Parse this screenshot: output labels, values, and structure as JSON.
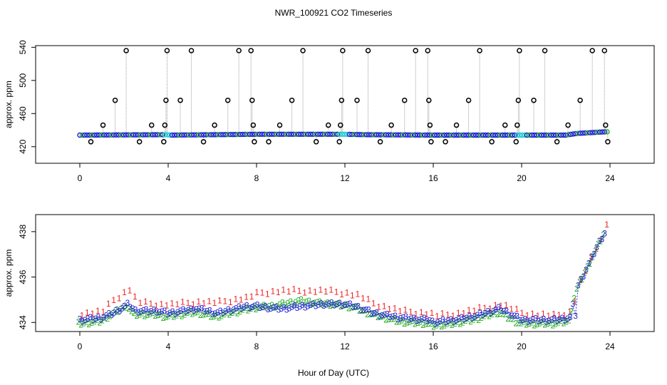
{
  "page_title": "NWR_100921  CO2 Timeseries",
  "x_axis_label": "Hour of Day (UTC)",
  "colors": {
    "frame": "#000000",
    "connector": "#9e9e9e",
    "outlier": "#000000",
    "series_blue": "#1f1fd6",
    "series_green": "#22aa22",
    "series_red": "#ee2222",
    "series_cyan": "#22cccc",
    "series_orange": "#ff9900"
  },
  "chart_data": [
    {
      "type": "scatter",
      "title": "NWR_100921  CO2 Timeseries",
      "xlabel": "",
      "ylabel": "approx. ppm",
      "xlim": [
        -2,
        26
      ],
      "ylim": [
        400,
        542
      ],
      "xticks": [
        0,
        4,
        8,
        12,
        16,
        20,
        24
      ],
      "yticks": [
        420,
        460,
        500,
        540
      ],
      "grid": false,
      "baseline": [
        [
          0,
          434
        ],
        [
          3.9,
          434.5
        ],
        [
          4.1,
          434
        ],
        [
          8,
          435
        ],
        [
          10,
          435
        ],
        [
          12,
          435
        ],
        [
          13,
          434.5
        ],
        [
          16,
          434
        ],
        [
          20,
          434
        ],
        [
          22,
          434
        ],
        [
          22.5,
          436
        ],
        [
          23.8,
          438
        ]
      ],
      "outliers": [
        [
          0.5,
          426
        ],
        [
          1.05,
          446
        ],
        [
          1.6,
          476
        ],
        [
          2.1,
          536
        ],
        [
          2.7,
          426
        ],
        [
          3.25,
          446
        ],
        [
          3.8,
          426
        ],
        [
          3.85,
          446
        ],
        [
          3.9,
          476
        ],
        [
          3.95,
          536
        ],
        [
          4.55,
          476
        ],
        [
          5.05,
          536
        ],
        [
          5.6,
          426
        ],
        [
          6.1,
          446
        ],
        [
          6.7,
          476
        ],
        [
          7.2,
          536
        ],
        [
          7.75,
          536
        ],
        [
          7.8,
          476
        ],
        [
          7.85,
          446
        ],
        [
          7.9,
          426
        ],
        [
          8.55,
          426
        ],
        [
          9.05,
          446
        ],
        [
          9.6,
          476
        ],
        [
          10.1,
          536
        ],
        [
          10.7,
          426
        ],
        [
          11.25,
          446
        ],
        [
          11.75,
          426
        ],
        [
          11.8,
          446
        ],
        [
          11.85,
          476
        ],
        [
          11.9,
          536
        ],
        [
          12.55,
          476
        ],
        [
          13.05,
          536
        ],
        [
          13.6,
          426
        ],
        [
          14.1,
          446
        ],
        [
          14.7,
          476
        ],
        [
          15.2,
          536
        ],
        [
          15.75,
          536
        ],
        [
          15.8,
          476
        ],
        [
          15.85,
          446
        ],
        [
          15.9,
          426
        ],
        [
          16.55,
          426
        ],
        [
          17.05,
          446
        ],
        [
          17.6,
          476
        ],
        [
          18.1,
          536
        ],
        [
          18.65,
          426
        ],
        [
          19.25,
          446
        ],
        [
          19.75,
          426
        ],
        [
          19.8,
          446
        ],
        [
          19.85,
          476
        ],
        [
          19.9,
          536
        ],
        [
          20.55,
          476
        ],
        [
          21.05,
          536
        ],
        [
          21.6,
          426
        ],
        [
          22.1,
          446
        ],
        [
          22.65,
          476
        ],
        [
          23.2,
          536
        ],
        [
          23.75,
          536
        ],
        [
          23.8,
          446
        ],
        [
          23.9,
          426
        ]
      ]
    },
    {
      "type": "scatter",
      "title": "",
      "xlabel": "Hour of Day (UTC)",
      "ylabel": "approx. ppm",
      "xlim": [
        -2,
        26
      ],
      "ylim": [
        433.6,
        438.75
      ],
      "xticks": [
        0,
        4,
        8,
        12,
        16,
        20,
        24
      ],
      "yticks": [
        434,
        436,
        438
      ],
      "grid": false,
      "marker_labels": [
        "1",
        "2",
        "3"
      ],
      "series": [
        {
          "name": "1",
          "color": "#ee2222",
          "offset": 0.3,
          "points": [
            [
              0,
              434.2
            ],
            [
              1,
              434.3
            ],
            [
              1.3,
              434.7
            ],
            [
              2.2,
              435.3
            ],
            [
              2.5,
              434.7
            ],
            [
              3.5,
              434.6
            ],
            [
              4,
              434.6
            ],
            [
              5.3,
              434.7
            ],
            [
              6.2,
              434.7
            ],
            [
              7.5,
              434.9
            ],
            [
              8,
              435.1
            ],
            [
              9,
              435.2
            ],
            [
              10,
              435.2
            ],
            [
              11,
              435.2
            ],
            [
              12,
              435.1
            ],
            [
              12.5,
              435
            ],
            [
              13.3,
              434.6
            ],
            [
              14.5,
              434.3
            ],
            [
              15.8,
              434.2
            ],
            [
              16,
              434.1
            ],
            [
              17,
              434.2
            ],
            [
              18,
              434.4
            ],
            [
              19,
              434.6
            ],
            [
              20,
              434.2
            ],
            [
              21.5,
              434.1
            ],
            [
              22.2,
              434.3
            ],
            [
              22.5,
              435.5
            ],
            [
              23,
              436.5
            ],
            [
              23.5,
              437.5
            ],
            [
              23.85,
              438.3
            ]
          ]
        },
        {
          "name": "2",
          "color": "#22aa22",
          "offset": -0.25,
          "points": [
            [
              0,
              434.1
            ],
            [
              1,
              434.2
            ],
            [
              1.5,
              434.5
            ],
            [
              2.2,
              434.9
            ],
            [
              2.5,
              434.5
            ],
            [
              3.5,
              434.5
            ],
            [
              4,
              434.4
            ],
            [
              5.3,
              434.6
            ],
            [
              6.2,
              434.4
            ],
            [
              7.5,
              434.7
            ],
            [
              8,
              434.8
            ],
            [
              9,
              434.9
            ],
            [
              10,
              435.1
            ],
            [
              11,
              435.0
            ],
            [
              12,
              434.9
            ],
            [
              12.5,
              434.8
            ],
            [
              13.3,
              434.5
            ],
            [
              14.5,
              434.2
            ],
            [
              15.8,
              434.1
            ],
            [
              16,
              434.0
            ],
            [
              17,
              434.1
            ],
            [
              18,
              434.3
            ],
            [
              19,
              434.6
            ],
            [
              20,
              434.1
            ],
            [
              21.5,
              434.1
            ],
            [
              22.2,
              434.2
            ],
            [
              22.5,
              435.5
            ],
            [
              23,
              436.5
            ],
            [
              23.5,
              437.5
            ],
            [
              23.85,
              438.2
            ]
          ]
        },
        {
          "name": "3",
          "color": "#1f1fd6",
          "offset": 0,
          "points": [
            [
              0,
              434.1
            ],
            [
              1,
              434.2
            ],
            [
              1.5,
              434.4
            ],
            [
              2.2,
              434.8
            ],
            [
              2.5,
              434.5
            ],
            [
              3.5,
              434.5
            ],
            [
              4,
              434.4
            ],
            [
              5.3,
              434.6
            ],
            [
              6.2,
              434.4
            ],
            [
              7.5,
              434.7
            ],
            [
              8,
              434.7
            ],
            [
              9,
              434.6
            ],
            [
              10,
              434.7
            ],
            [
              11,
              434.8
            ],
            [
              12,
              434.8
            ],
            [
              12.5,
              434.7
            ],
            [
              13.3,
              434.4
            ],
            [
              14.5,
              434.2
            ],
            [
              15.8,
              434.1
            ],
            [
              16,
              434.0
            ],
            [
              17,
              434.1
            ],
            [
              18,
              434.3
            ],
            [
              19,
              434.6
            ],
            [
              20,
              434.1
            ],
            [
              21.5,
              434.1
            ],
            [
              22.2,
              434.2
            ],
            [
              22.3,
              434.8
            ],
            [
              22.45,
              434.3
            ],
            [
              22.5,
              435.5
            ],
            [
              23,
              436.5
            ],
            [
              23.5,
              437.5
            ],
            [
              23.85,
              438.1
            ]
          ]
        }
      ]
    }
  ]
}
